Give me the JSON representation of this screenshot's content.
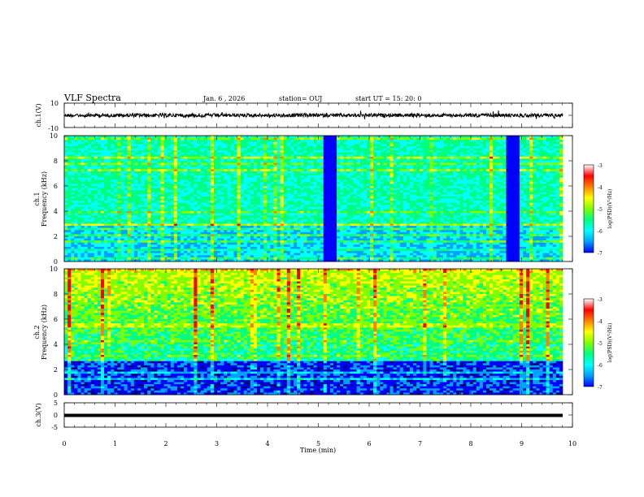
{
  "header": {
    "title": "VLF Spectra",
    "date": "Jan. 6 , 2026",
    "station": "station= OUJ",
    "start": "start UT = 15: 20: 0"
  },
  "colors": {
    "waveform": "#000000",
    "colormap": [
      "#000080",
      "#0000ff",
      "#00a0ff",
      "#00ffff",
      "#00ff80",
      "#80ff00",
      "#ffff00",
      "#ff8000",
      "#ff0000",
      "#ffffff"
    ]
  },
  "chart_data": [
    {
      "type": "line",
      "ylabel": "ch.1(V)",
      "ylim": [
        -10,
        10
      ],
      "yticks": [
        "10",
        "-10"
      ],
      "xlim": [
        0,
        10
      ],
      "signal": "broadband noise, amplitude about ±1.5 V",
      "level": 0
    },
    {
      "type": "heatmap",
      "ylabel": "ch.1",
      "ylabel2": "Frequency (kHz)",
      "xlim": [
        0,
        10
      ],
      "ylim": [
        0,
        10
      ],
      "yticks": [
        "0",
        "2",
        "4",
        "6",
        "8",
        "10"
      ],
      "baseline_log_psd": -5.2,
      "low_power_gaps_min": [
        [
          5.15,
          5.35
        ],
        [
          8.75,
          8.95
        ]
      ],
      "colorbar": {
        "label": "log(PSD)(V²/Hz)",
        "range": [
          -7,
          -3
        ],
        "ticks": [
          "-3",
          "-4",
          "-5",
          "-6",
          "-7"
        ]
      }
    },
    {
      "type": "heatmap",
      "ylabel": "ch.2",
      "ylabel2": "Frequency (kHz)",
      "xlim": [
        0,
        10
      ],
      "ylim": [
        0,
        10
      ],
      "yticks": [
        "0",
        "2",
        "4",
        "6",
        "8",
        "10"
      ],
      "baseline_log_psd_low": -6.4,
      "baseline_log_psd_high": -4.2,
      "colorbar": {
        "label": "log(PSD)(V²/Hz)",
        "range": [
          -7,
          -3
        ],
        "ticks": [
          "-3",
          "-4",
          "-5",
          "-6",
          "-7"
        ]
      }
    },
    {
      "type": "line",
      "ylabel": "ch.3(V)",
      "ylim": [
        -5,
        5
      ],
      "yticks": [
        "5",
        "0",
        "-5"
      ],
      "xlim": [
        0,
        10
      ],
      "constant_value": 0
    }
  ],
  "xaxis": {
    "label": "Time (min)",
    "ticks": [
      "0",
      "1",
      "2",
      "3",
      "4",
      "5",
      "6",
      "7",
      "8",
      "9",
      "10"
    ]
  }
}
